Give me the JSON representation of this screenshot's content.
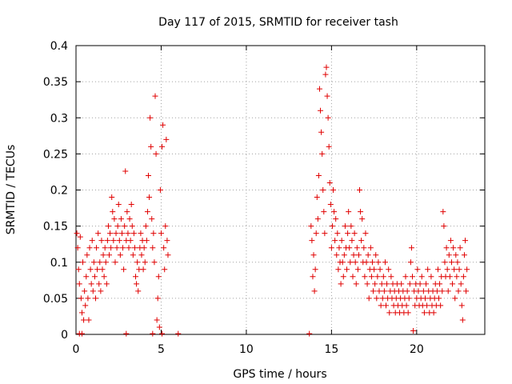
{
  "chart_data": {
    "type": "scatter",
    "title": "Day 117 of 2015, SRMTID for receiver tash",
    "xlabel": "GPS time / hours",
    "ylabel": "SRMTID / TECUs",
    "xlim": [
      0,
      24
    ],
    "ylim": [
      0,
      0.4
    ],
    "grid": true,
    "marker": "+",
    "color": "#e00000",
    "x_ticks": [
      0,
      5,
      10,
      15,
      20
    ],
    "x_tick_labels": [
      "0",
      "5",
      "10",
      "15",
      "20"
    ],
    "y_ticks": [
      0,
      0.05,
      0.1,
      0.15,
      0.2,
      0.25,
      0.3,
      0.35,
      0.4
    ],
    "y_tick_labels": [
      "0",
      "0.05",
      "0.1",
      "0.15",
      "0.2",
      "0.25",
      "0.3",
      "0.35",
      "0.4"
    ],
    "series": [
      {
        "name": "SRMTID",
        "points": [
          [
            0.05,
            0.14
          ],
          [
            0.1,
            0.12
          ],
          [
            0.15,
            0.09
          ],
          [
            0.2,
            0.07
          ],
          [
            0.25,
            0.135
          ],
          [
            0.3,
            0.05
          ],
          [
            0.35,
            0.03
          ],
          [
            0.4,
            0.1
          ],
          [
            0.45,
            0.02
          ],
          [
            0.5,
            0.06
          ],
          [
            0.55,
            0.04
          ],
          [
            0.6,
            0.08
          ],
          [
            0.65,
            0.11
          ],
          [
            0.7,
            0.05
          ],
          [
            0.75,
            0.02
          ],
          [
            0.8,
            0.12
          ],
          [
            0.85,
            0.09
          ],
          [
            0.9,
            0.07
          ],
          [
            0.95,
            0.13
          ],
          [
            1.0,
            0.06
          ],
          [
            1.05,
            0.1
          ],
          [
            1.1,
            0.08
          ],
          [
            1.15,
            0.05
          ],
          [
            1.2,
            0.12
          ],
          [
            1.25,
            0.09
          ],
          [
            1.3,
            0.14
          ],
          [
            1.35,
            0.07
          ],
          [
            1.4,
            0.1
          ],
          [
            1.45,
            0.06
          ],
          [
            1.5,
            0.13
          ],
          [
            1.55,
            0.09
          ],
          [
            1.6,
            0.11
          ],
          [
            1.65,
            0.08
          ],
          [
            1.7,
            0.12
          ],
          [
            1.75,
            0.1
          ],
          [
            1.8,
            0.07
          ],
          [
            1.85,
            0.13
          ],
          [
            1.9,
            0.15
          ],
          [
            1.95,
            0.11
          ],
          [
            2.0,
            0.14
          ],
          [
            2.05,
            0.12
          ],
          [
            2.1,
            0.19
          ],
          [
            2.15,
            0.17
          ],
          [
            2.2,
            0.13
          ],
          [
            2.25,
            0.16
          ],
          [
            2.3,
            0.1
          ],
          [
            2.35,
            0.14
          ],
          [
            2.4,
            0.12
          ],
          [
            2.45,
            0.15
          ],
          [
            2.5,
            0.18
          ],
          [
            2.55,
            0.13
          ],
          [
            2.6,
            0.11
          ],
          [
            2.65,
            0.16
          ],
          [
            2.7,
            0.14
          ],
          [
            2.75,
            0.12
          ],
          [
            2.8,
            0.09
          ],
          [
            2.85,
            0.15
          ],
          [
            2.9,
            0.226
          ],
          [
            2.95,
            0.13
          ],
          [
            3.0,
            0.17
          ],
          [
            3.05,
            0.14
          ],
          [
            3.1,
            0.12
          ],
          [
            3.15,
            0.16
          ],
          [
            3.2,
            0.13
          ],
          [
            3.25,
            0.18
          ],
          [
            3.3,
            0.15
          ],
          [
            3.35,
            0.11
          ],
          [
            3.4,
            0.14
          ],
          [
            3.45,
            0.12
          ],
          [
            3.5,
            0.08
          ],
          [
            3.55,
            0.07
          ],
          [
            3.6,
            0.1
          ],
          [
            3.65,
            0.06
          ],
          [
            3.7,
            0.09
          ],
          [
            3.75,
            0.12
          ],
          [
            3.8,
            0.14
          ],
          [
            3.85,
            0.11
          ],
          [
            3.9,
            0.13
          ],
          [
            3.95,
            0.09
          ],
          [
            4.0,
            0.12
          ],
          [
            4.05,
            0.1
          ],
          [
            4.1,
            0.15
          ],
          [
            4.15,
            0.13
          ],
          [
            4.2,
            0.17
          ],
          [
            4.25,
            0.22
          ],
          [
            4.3,
            0.19
          ],
          [
            4.35,
            0.3
          ],
          [
            4.4,
            0.26
          ],
          [
            4.45,
            0.16
          ],
          [
            4.5,
            0.12
          ],
          [
            4.55,
            0.14
          ],
          [
            4.6,
            0.1
          ],
          [
            4.65,
            0.33
          ],
          [
            4.7,
            0.25
          ],
          [
            4.75,
            0.02
          ],
          [
            4.8,
            0.05
          ],
          [
            4.85,
            0.08
          ],
          [
            4.9,
            0.01
          ],
          [
            4.95,
            0.2
          ],
          [
            5.0,
            0.14
          ],
          [
            5.05,
            0.26
          ],
          [
            5.1,
            0.29
          ],
          [
            5.15,
            0.12
          ],
          [
            5.2,
            0.09
          ],
          [
            5.25,
            0.15
          ],
          [
            5.3,
            0.27
          ],
          [
            5.35,
            0.13
          ],
          [
            5.4,
            0.11
          ],
          [
            0.2,
            0.001
          ],
          [
            0.35,
            0.001
          ],
          [
            2.95,
            0.001
          ],
          [
            4.5,
            0.001
          ],
          [
            5.05,
            0.001
          ],
          [
            6.0,
            0.001
          ],
          [
            13.7,
            0.001
          ],
          [
            13.8,
            0.15
          ],
          [
            13.85,
            0.13
          ],
          [
            13.9,
            0.08
          ],
          [
            13.95,
            0.11
          ],
          [
            14.0,
            0.06
          ],
          [
            14.05,
            0.09
          ],
          [
            14.1,
            0.14
          ],
          [
            14.15,
            0.19
          ],
          [
            14.2,
            0.16
          ],
          [
            14.25,
            0.22
          ],
          [
            14.3,
            0.34
          ],
          [
            14.35,
            0.31
          ],
          [
            14.4,
            0.28
          ],
          [
            14.45,
            0.25
          ],
          [
            14.5,
            0.2
          ],
          [
            14.55,
            0.17
          ],
          [
            14.6,
            0.14
          ],
          [
            14.65,
            0.36
          ],
          [
            14.7,
            0.37
          ],
          [
            14.75,
            0.33
          ],
          [
            14.8,
            0.3
          ],
          [
            14.85,
            0.26
          ],
          [
            14.9,
            0.21
          ],
          [
            14.95,
            0.18
          ],
          [
            15.0,
            0.12
          ],
          [
            15.05,
            0.15
          ],
          [
            15.1,
            0.2
          ],
          [
            15.15,
            0.17
          ],
          [
            15.2,
            0.13
          ],
          [
            15.25,
            0.16
          ],
          [
            15.3,
            0.11
          ],
          [
            15.35,
            0.14
          ],
          [
            15.4,
            0.09
          ],
          [
            15.45,
            0.12
          ],
          [
            15.5,
            0.1
          ],
          [
            15.55,
            0.07
          ],
          [
            15.6,
            0.13
          ],
          [
            15.65,
            0.1
          ],
          [
            15.7,
            0.08
          ],
          [
            15.75,
            0.11
          ],
          [
            15.8,
            0.15
          ],
          [
            15.85,
            0.12
          ],
          [
            15.9,
            0.09
          ],
          [
            15.95,
            0.14
          ],
          [
            16.0,
            0.17
          ],
          [
            16.05,
            0.12
          ],
          [
            16.1,
            0.1
          ],
          [
            16.15,
            0.15
          ],
          [
            16.2,
            0.13
          ],
          [
            16.25,
            0.08
          ],
          [
            16.3,
            0.11
          ],
          [
            16.35,
            0.14
          ],
          [
            16.4,
            0.1
          ],
          [
            16.45,
            0.07
          ],
          [
            16.5,
            0.12
          ],
          [
            16.55,
            0.09
          ],
          [
            16.6,
            0.11
          ],
          [
            16.65,
            0.2
          ],
          [
            16.7,
            0.17
          ],
          [
            16.75,
            0.13
          ],
          [
            16.8,
            0.16
          ],
          [
            16.85,
            0.1
          ],
          [
            16.9,
            0.12
          ],
          [
            16.95,
            0.08
          ],
          [
            17.0,
            0.14
          ],
          [
            17.05,
            0.1
          ],
          [
            17.1,
            0.07
          ],
          [
            17.15,
            0.11
          ],
          [
            17.2,
            0.05
          ],
          [
            17.25,
            0.09
          ],
          [
            17.3,
            0.12
          ],
          [
            17.35,
            0.08
          ],
          [
            17.4,
            0.1
          ],
          [
            17.45,
            0.06
          ],
          [
            17.5,
            0.09
          ],
          [
            17.55,
            0.07
          ],
          [
            17.6,
            0.11
          ],
          [
            17.65,
            0.05
          ],
          [
            17.7,
            0.08
          ],
          [
            17.75,
            0.1
          ],
          [
            17.8,
            0.06
          ],
          [
            17.85,
            0.09
          ],
          [
            17.9,
            0.04
          ],
          [
            17.95,
            0.07
          ],
          [
            18.0,
            0.05
          ],
          [
            18.05,
            0.08
          ],
          [
            18.1,
            0.06
          ],
          [
            18.15,
            0.1
          ],
          [
            18.2,
            0.04
          ],
          [
            18.25,
            0.07
          ],
          [
            18.3,
            0.05
          ],
          [
            18.35,
            0.09
          ],
          [
            18.4,
            0.03
          ],
          [
            18.45,
            0.06
          ],
          [
            18.5,
            0.08
          ],
          [
            18.55,
            0.05
          ],
          [
            18.6,
            0.07
          ],
          [
            18.65,
            0.04
          ],
          [
            18.7,
            0.06
          ],
          [
            18.75,
            0.03
          ],
          [
            18.8,
            0.05
          ],
          [
            18.85,
            0.07
          ],
          [
            18.9,
            0.04
          ],
          [
            18.95,
            0.06
          ],
          [
            19.0,
            0.03
          ],
          [
            19.05,
            0.05
          ],
          [
            19.1,
            0.07
          ],
          [
            19.15,
            0.04
          ],
          [
            19.2,
            0.06
          ],
          [
            19.25,
            0.03
          ],
          [
            19.3,
            0.05
          ],
          [
            19.35,
            0.08
          ],
          [
            19.4,
            0.04
          ],
          [
            19.45,
            0.06
          ],
          [
            19.5,
            0.03
          ],
          [
            19.55,
            0.05
          ],
          [
            19.6,
            0.07
          ],
          [
            19.65,
            0.1
          ],
          [
            19.7,
            0.12
          ],
          [
            19.75,
            0.08
          ],
          [
            19.8,
            0.005
          ],
          [
            19.85,
            0.06
          ],
          [
            19.9,
            0.04
          ],
          [
            19.95,
            0.07
          ],
          [
            20.0,
            0.05
          ],
          [
            20.05,
            0.09
          ],
          [
            20.1,
            0.06
          ],
          [
            20.15,
            0.04
          ],
          [
            20.2,
            0.07
          ],
          [
            20.25,
            0.05
          ],
          [
            20.3,
            0.08
          ],
          [
            20.35,
            0.04
          ],
          [
            20.4,
            0.06
          ],
          [
            20.45,
            0.03
          ],
          [
            20.5,
            0.05
          ],
          [
            20.55,
            0.07
          ],
          [
            20.6,
            0.04
          ],
          [
            20.65,
            0.09
          ],
          [
            20.7,
            0.06
          ],
          [
            20.75,
            0.03
          ],
          [
            20.8,
            0.05
          ],
          [
            20.85,
            0.08
          ],
          [
            20.9,
            0.04
          ],
          [
            20.95,
            0.06
          ],
          [
            21.0,
            0.03
          ],
          [
            21.05,
            0.05
          ],
          [
            21.1,
            0.07
          ],
          [
            21.15,
            0.04
          ],
          [
            21.2,
            0.06
          ],
          [
            21.25,
            0.09
          ],
          [
            21.3,
            0.05
          ],
          [
            21.35,
            0.07
          ],
          [
            21.4,
            0.04
          ],
          [
            21.45,
            0.08
          ],
          [
            21.5,
            0.06
          ],
          [
            21.55,
            0.17
          ],
          [
            21.6,
            0.15
          ],
          [
            21.65,
            0.1
          ],
          [
            21.7,
            0.08
          ],
          [
            21.75,
            0.12
          ],
          [
            21.8,
            0.09
          ],
          [
            21.85,
            0.06
          ],
          [
            21.9,
            0.11
          ],
          [
            21.95,
            0.08
          ],
          [
            22.0,
            0.13
          ],
          [
            22.05,
            0.1
          ],
          [
            22.1,
            0.07
          ],
          [
            22.15,
            0.12
          ],
          [
            22.2,
            0.09
          ],
          [
            22.25,
            0.05
          ],
          [
            22.3,
            0.11
          ],
          [
            22.35,
            0.08
          ],
          [
            22.4,
            0.1
          ],
          [
            22.45,
            0.06
          ],
          [
            22.5,
            0.09
          ],
          [
            22.55,
            0.12
          ],
          [
            22.6,
            0.07
          ],
          [
            22.65,
            0.04
          ],
          [
            22.7,
            0.02
          ],
          [
            22.75,
            0.08
          ],
          [
            22.8,
            0.11
          ],
          [
            22.85,
            0.13
          ],
          [
            22.9,
            0.06
          ],
          [
            22.95,
            0.09
          ]
        ]
      }
    ]
  }
}
